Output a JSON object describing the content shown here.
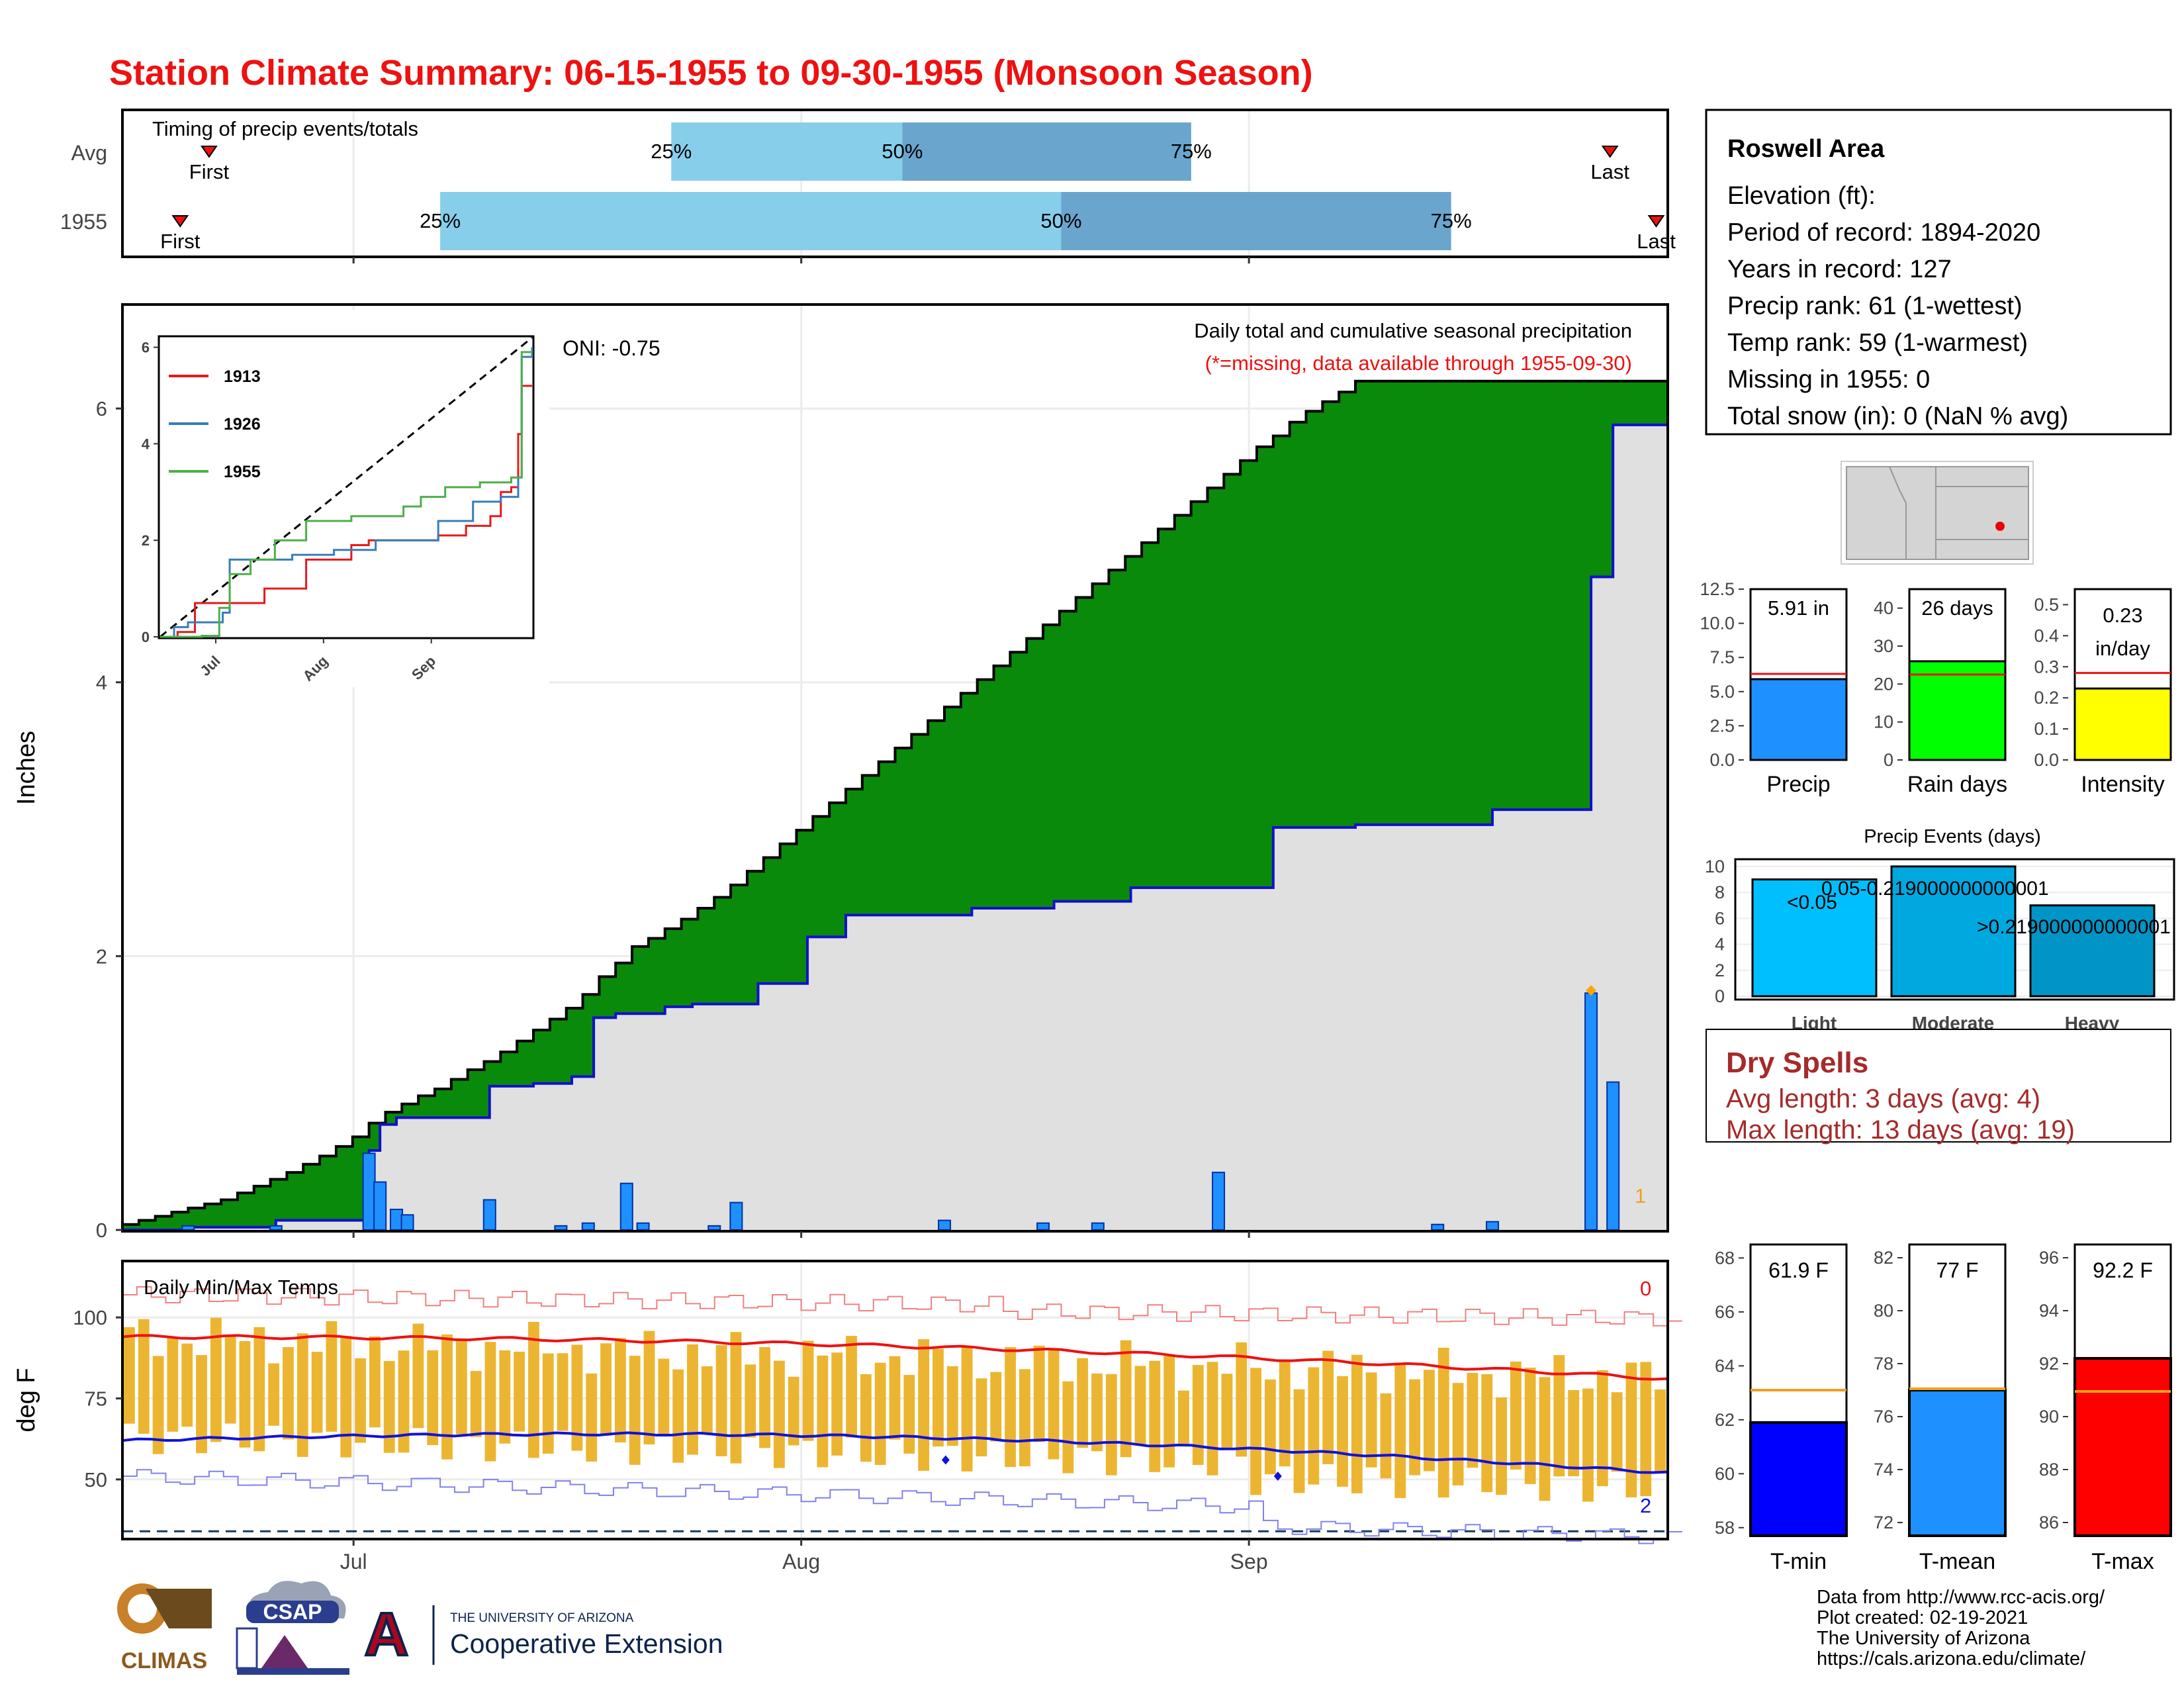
{
  "title": "Station Climate Summary: 06-15-1955 to 09-30-1955 (Monsoon Season)",
  "colors": {
    "title": "#ee1111",
    "cumulative_fill": "#8b5a00",
    "deficit_fill": "#0a8a0a",
    "observed_fill": "#e0e0e0",
    "daily_bar": "#1e90ff",
    "observed_line": "#1010cc",
    "tmax_line": "#ee1111",
    "tmin_line": "#1111dd",
    "temp_bar": "#ecb531",
    "timing_light": "#87ceeb",
    "timing_dark": "#6aa5cd",
    "dry_spell_text": "#a52a2a"
  },
  "timing": {
    "label": "Timing of precip events/totals",
    "rows": [
      {
        "name": "Avg",
        "pct25": "25%",
        "pct50": "50%",
        "pct75": "75%",
        "first": "First",
        "last": "Last"
      },
      {
        "name": "1955",
        "pct25": "25%",
        "pct50": "50%",
        "pct75": "75%",
        "first": "First",
        "last": "Last"
      }
    ]
  },
  "precip_panel": {
    "ylabel": "Inches",
    "yticks": [
      "0",
      "2",
      "4",
      "6"
    ],
    "oni": "ONI: -0.75",
    "caption": "Daily total and cumulative seasonal precipitation",
    "missing_note": "(*=missing, data available through 1955-09-30)",
    "missing_count": "1"
  },
  "inset": {
    "yticks": [
      "0",
      "2",
      "4",
      "6"
    ],
    "xticks": [
      "Jul",
      "Aug",
      "Sep"
    ],
    "legend": [
      {
        "name": "1913",
        "color": "#e41a1c"
      },
      {
        "name": "1926",
        "color": "#377eb8"
      },
      {
        "name": "1955",
        "color": "#4daf4a"
      }
    ]
  },
  "temp_panel": {
    "ylabel": "deg F",
    "caption": "Daily Min/Max Temps",
    "yticks": [
      "50",
      "75",
      "100"
    ],
    "missing_max": "0",
    "missing_min": "2"
  },
  "xticks": [
    "Jul",
    "Aug",
    "Sep"
  ],
  "info": {
    "station": "Roswell Area",
    "lines": [
      "Elevation (ft):",
      "Period of record: 1894-2020",
      "Years in record: 127",
      "Precip rank: 61 (1-wettest)",
      "Temp rank: 59 (1-warmest)",
      "Missing in 1955: 0",
      "Total snow (in): 0 (NaN % avg)"
    ]
  },
  "summary_bars": [
    {
      "label": "Precip",
      "value_text": "5.91 in",
      "value": 5.91,
      "avg": 6.3,
      "ymax": 12.5,
      "yticks": [
        "0.0",
        "2.5",
        "5.0",
        "7.5",
        "10.0",
        "12.5"
      ],
      "color": "#1e90ff"
    },
    {
      "label": "Rain days",
      "value_text": "26 days",
      "value": 26,
      "avg": 22.5,
      "ymax": 45,
      "yticks": [
        "0",
        "10",
        "20",
        "30",
        "40"
      ],
      "color": "#00ff00"
    },
    {
      "label": "Intensity",
      "value_text_1": "0.23",
      "value_text_2": "in/day",
      "value": 0.23,
      "avg": 0.28,
      "ymax": 0.55,
      "yticks": [
        "0.0",
        "0.1",
        "0.2",
        "0.3",
        "0.4",
        "0.5"
      ],
      "color": "#ffff00"
    }
  ],
  "precip_events": {
    "title": "Precip Events (days)",
    "yticks": [
      "0",
      "2",
      "4",
      "6",
      "8",
      "10"
    ],
    "bars": [
      {
        "label": "Light",
        "bar_text": "<0.05",
        "value": 9,
        "color": "#00bfff"
      },
      {
        "label": "Moderate",
        "bar_text": "0.05-0.219000000000001",
        "value": 10,
        "color": "#00a8e0"
      },
      {
        "label": "Heavy",
        "bar_text": ">0.219000000000001",
        "value": 7,
        "color": "#0095c6"
      }
    ]
  },
  "dry_spells": {
    "title": "Dry Spells",
    "avg": "Avg length: 3 days (avg: 4)",
    "max": "Max length: 13 days (avg: 19)"
  },
  "temp_bars": [
    {
      "label": "T-min",
      "value_text": "61.9 F",
      "value": 61.9,
      "avg": 63.1,
      "ymin": 57.7,
      "ymax": 68.5,
      "yticks": [
        "58",
        "60",
        "62",
        "64",
        "66",
        "68"
      ],
      "color": "#0000ff"
    },
    {
      "label": "T-mean",
      "value_text": "77 F",
      "value": 77.0,
      "avg": 77.05,
      "ymin": 71.5,
      "ymax": 82.5,
      "yticks": [
        "72",
        "74",
        "76",
        "78",
        "80",
        "82"
      ],
      "color": "#1e90ff"
    },
    {
      "label": "T-max",
      "value_text": "92.2 F",
      "value": 92.2,
      "avg": 90.95,
      "ymin": 85.5,
      "ymax": 96.5,
      "yticks": [
        "86",
        "88",
        "90",
        "92",
        "94",
        "96"
      ],
      "color": "#ff0000"
    }
  ],
  "credits": [
    "Data from http://www.rcc-acis.org/",
    "Plot created: 02-19-2021",
    "The University of Arizona",
    "https://cals.arizona.edu/climate/"
  ],
  "logos": {
    "climas": "CLIMAS",
    "csap": "CSAP",
    "ua_small": "THE UNIVERSITY OF ARIZONA",
    "ua_big": "Cooperative Extension",
    "ua_letter": "A"
  },
  "chart_data": {
    "type": "area",
    "xlabel": "",
    "ylabel": "Inches",
    "x_start": "1955-06-15",
    "x_end": "1955-09-30",
    "ylim": [
      0,
      6.75
    ],
    "cumulative_avg_steps": [
      [
        0,
        0.04
      ],
      [
        3,
        0.07
      ],
      [
        6,
        0.1
      ],
      [
        9,
        0.13
      ],
      [
        12,
        0.16
      ],
      [
        15,
        0.19
      ],
      [
        18,
        0.22
      ],
      [
        21,
        0.27
      ],
      [
        24,
        0.32
      ],
      [
        27,
        0.37
      ],
      [
        30,
        0.42
      ],
      [
        33,
        0.48
      ],
      [
        36,
        0.54
      ],
      [
        39,
        0.61
      ],
      [
        42,
        0.68
      ],
      [
        45,
        0.78
      ],
      [
        48,
        0.86
      ],
      [
        51,
        0.92
      ],
      [
        54,
        0.98
      ],
      [
        57,
        1.03
      ],
      [
        60,
        1.1
      ],
      [
        63,
        1.17
      ],
      [
        66,
        1.23
      ],
      [
        69,
        1.3
      ],
      [
        72,
        1.38
      ],
      [
        75,
        1.46
      ],
      [
        78,
        1.54
      ],
      [
        81,
        1.62
      ],
      [
        84,
        1.72
      ],
      [
        87,
        1.85
      ],
      [
        90,
        1.95
      ],
      [
        93,
        2.07
      ],
      [
        96,
        2.13
      ],
      [
        99,
        2.2
      ],
      [
        102,
        2.27
      ],
      [
        105,
        2.35
      ],
      [
        108,
        2.43
      ],
      [
        111,
        2.52
      ],
      [
        114,
        2.62
      ],
      [
        117,
        2.72
      ],
      [
        120,
        2.82
      ],
      [
        123,
        2.92
      ],
      [
        126,
        3.02
      ],
      [
        129,
        3.12
      ],
      [
        132,
        3.22
      ],
      [
        135,
        3.32
      ],
      [
        138,
        3.42
      ],
      [
        141,
        3.52
      ],
      [
        144,
        3.62
      ],
      [
        147,
        3.72
      ],
      [
        150,
        3.82
      ],
      [
        153,
        3.92
      ],
      [
        156,
        4.02
      ],
      [
        159,
        4.12
      ],
      [
        162,
        4.22
      ],
      [
        165,
        4.32
      ],
      [
        168,
        4.42
      ],
      [
        171,
        4.52
      ],
      [
        174,
        4.62
      ],
      [
        177,
        4.72
      ],
      [
        180,
        4.82
      ],
      [
        183,
        4.92
      ],
      [
        186,
        5.02
      ],
      [
        189,
        5.12
      ],
      [
        192,
        5.22
      ],
      [
        195,
        5.32
      ],
      [
        198,
        5.42
      ],
      [
        201,
        5.52
      ],
      [
        204,
        5.62
      ],
      [
        207,
        5.72
      ],
      [
        210,
        5.8
      ],
      [
        213,
        5.9
      ],
      [
        216,
        5.98
      ],
      [
        219,
        6.05
      ],
      [
        222,
        6.12
      ],
      [
        225,
        6.2
      ]
    ],
    "cumulative_1955": [
      [
        0,
        0.0
      ],
      [
        12,
        0.02
      ],
      [
        28,
        0.07
      ],
      [
        45,
        0.58
      ],
      [
        47,
        0.77
      ],
      [
        50,
        0.82
      ],
      [
        67,
        1.05
      ],
      [
        75,
        1.07
      ],
      [
        82,
        1.12
      ],
      [
        86,
        1.55
      ],
      [
        90,
        1.58
      ],
      [
        99,
        1.63
      ],
      [
        104,
        1.65
      ],
      [
        116,
        1.8
      ],
      [
        125,
        2.14
      ],
      [
        132,
        2.3
      ],
      [
        155,
        2.35
      ],
      [
        170,
        2.4
      ],
      [
        184,
        2.5
      ],
      [
        210,
        2.94
      ],
      [
        225,
        2.96
      ],
      [
        250,
        3.07
      ],
      [
        268,
        4.77
      ],
      [
        272,
        5.88
      ],
      [
        282,
        5.88
      ]
    ],
    "daily_precip": [
      [
        12,
        0.03
      ],
      [
        28,
        0.03
      ],
      [
        45,
        0.56
      ],
      [
        47,
        0.35
      ],
      [
        50,
        0.15
      ],
      [
        52,
        0.11
      ],
      [
        67,
        0.22
      ],
      [
        80,
        0.03
      ],
      [
        85,
        0.05
      ],
      [
        92,
        0.34
      ],
      [
        95,
        0.05
      ],
      [
        108,
        0.03
      ],
      [
        112,
        0.2
      ],
      [
        150,
        0.07
      ],
      [
        168,
        0.05
      ],
      [
        178,
        0.05
      ],
      [
        200,
        0.42
      ],
      [
        240,
        0.04
      ],
      [
        250,
        0.06
      ],
      [
        268,
        1.73
      ],
      [
        272,
        1.08
      ]
    ],
    "temp_max_avg_start": 94,
    "temp_max_avg_end": 81,
    "temp_min_avg_start": 62,
    "temp_min_avg_end": 52
  }
}
